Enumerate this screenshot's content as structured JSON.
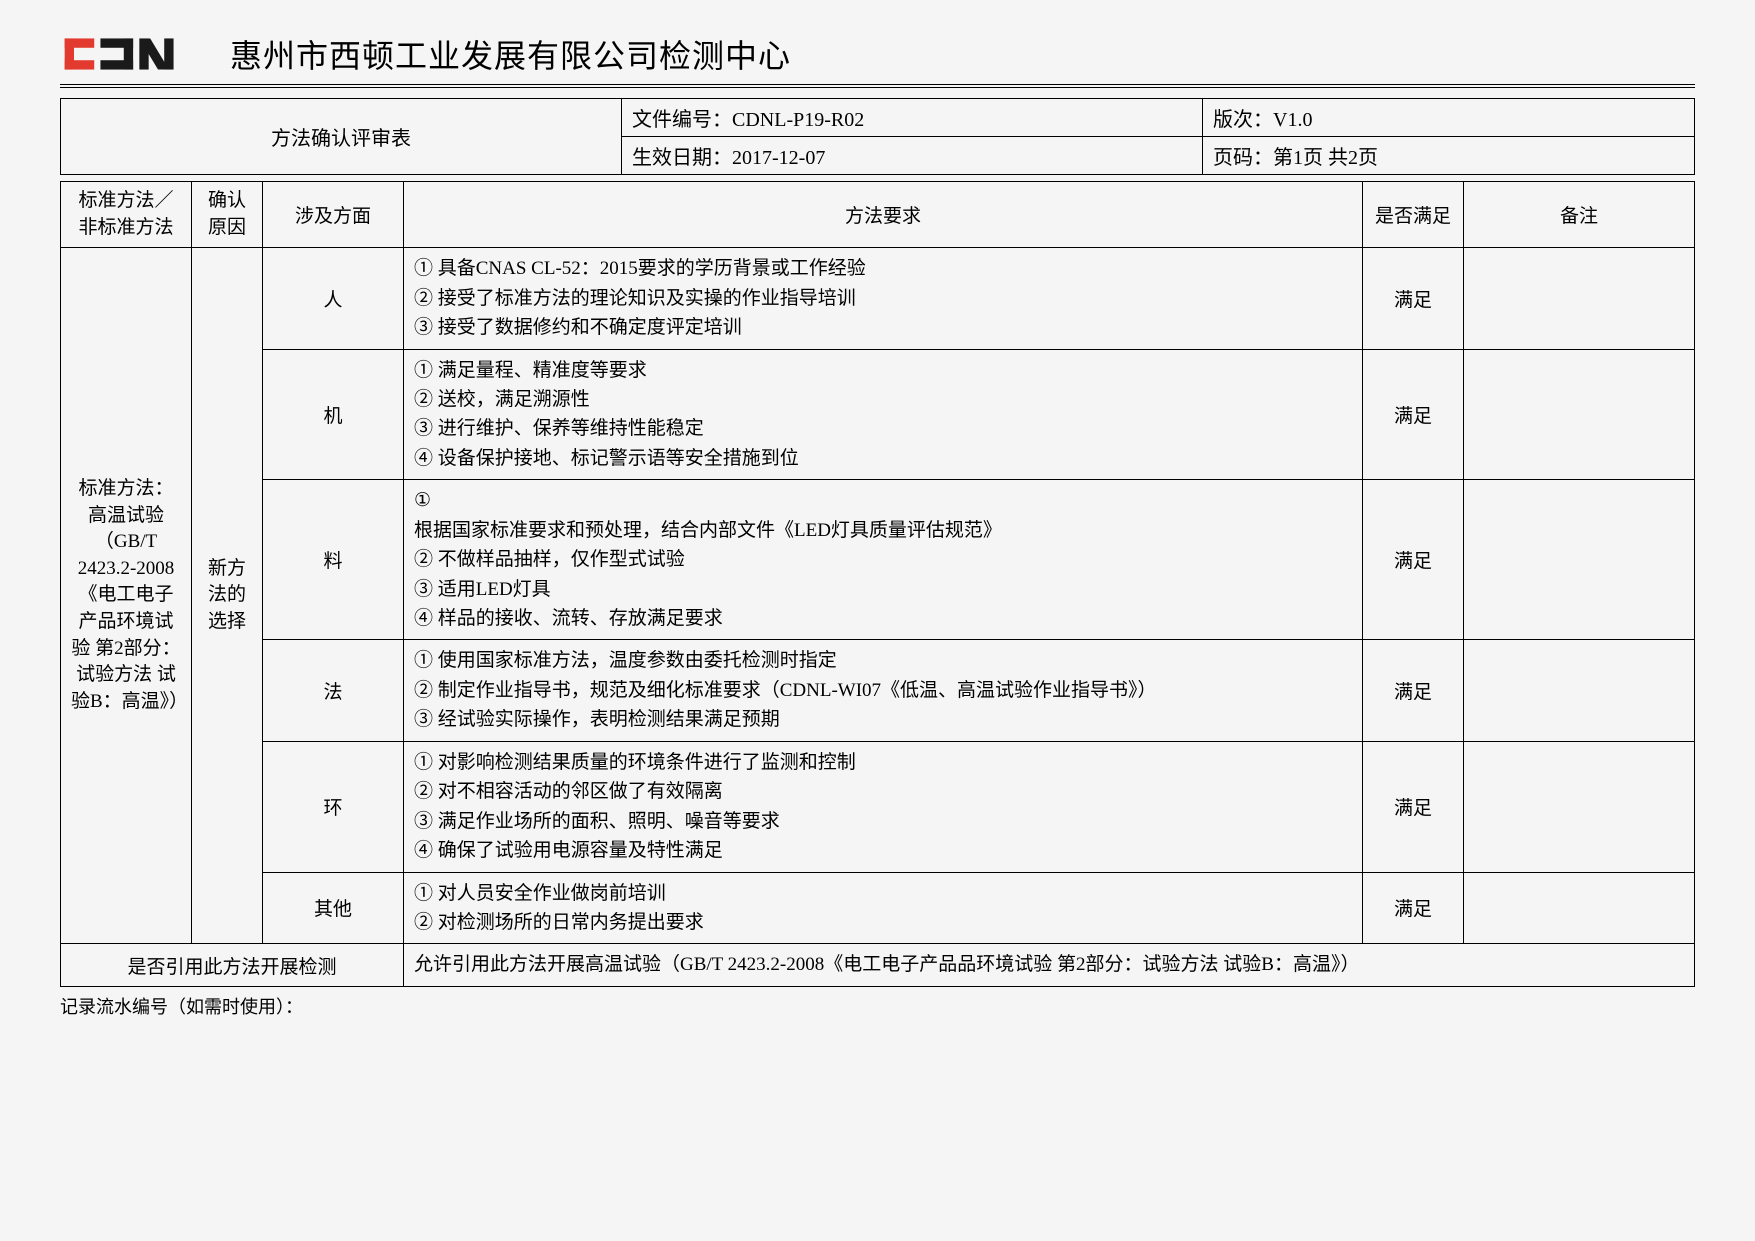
{
  "header": {
    "company_title": "惠州市西顿工业发展有限公司检测中心"
  },
  "meta": {
    "form_title": "方法确认评审表",
    "doc_no_label": "文件编号：",
    "doc_no": "CDNL-P19-R02",
    "version_label": "版次：",
    "version": "V1.0",
    "eff_date_label": "生效日期：",
    "eff_date": "2017-12-07",
    "page_label": "页码：",
    "page": "第1页 共2页"
  },
  "columns": {
    "std_method": "标准方法／非标准方法",
    "reason": "确认原因",
    "aspect": "涉及方面",
    "requirement": "方法要求",
    "satisfy": "是否满足",
    "notes": "备注"
  },
  "std_method_text": "标准方法：高温试验（GB/T 2423.2-2008《电工电子产品环境试验 第2部分：试验方法 试验B：高温》）",
  "reason_text": "新方法的选择",
  "rows": [
    {
      "aspect": "人",
      "req": "① 具备CNAS CL-52：2015要求的学历背景或工作经验\n② 接受了标准方法的理论知识及实操的作业指导培训\n③ 接受了数据修约和不确定度评定培训",
      "satisfy": "满足",
      "notes": ""
    },
    {
      "aspect": "机",
      "req": "① 满足量程、精准度等要求\n② 送校，满足溯源性\n③ 进行维护、保养等维持性能稳定\n④ 设备保护接地、标记警示语等安全措施到位",
      "satisfy": "满足",
      "notes": ""
    },
    {
      "aspect": "料",
      "req": "①\n根据国家标准要求和预处理，结合内部文件《LED灯具质量评估规范》\n② 不做样品抽样，仅作型式试验\n③ 适用LED灯具\n④ 样品的接收、流转、存放满足要求",
      "satisfy": "满足",
      "notes": ""
    },
    {
      "aspect": "法",
      "req": "① 使用国家标准方法，温度参数由委托检测时指定\n② 制定作业指导书，规范及细化标准要求（CDNL-WI07《低温、高温试验作业指导书》）\n③ 经试验实际操作，表明检测结果满足预期",
      "satisfy": "满足",
      "notes": ""
    },
    {
      "aspect": "环",
      "req": "① 对影响检测结果质量的环境条件进行了监测和控制\n② 对不相容活动的邻区做了有效隔离\n③ 满足作业场所的面积、照明、噪音等要求\n④ 确保了试验用电源容量及特性满足",
      "satisfy": "满足",
      "notes": ""
    },
    {
      "aspect": "其他",
      "req": "① 对人员安全作业做岗前培训\n② 对检测场所的日常内务提出要求",
      "satisfy": "满足",
      "notes": ""
    }
  ],
  "conclusion": {
    "label": "是否引用此方法开展检测",
    "text": "允许引用此方法开展高温试验（GB/T 2423.2-2008《电工电子产品品环境试验 第2部分：试验方法 试验B：高温》）"
  },
  "footer_note": "记录流水编号（如需时使用）：",
  "colors": {
    "logo_red": "#e23a2e",
    "logo_black": "#1a1a1a"
  }
}
